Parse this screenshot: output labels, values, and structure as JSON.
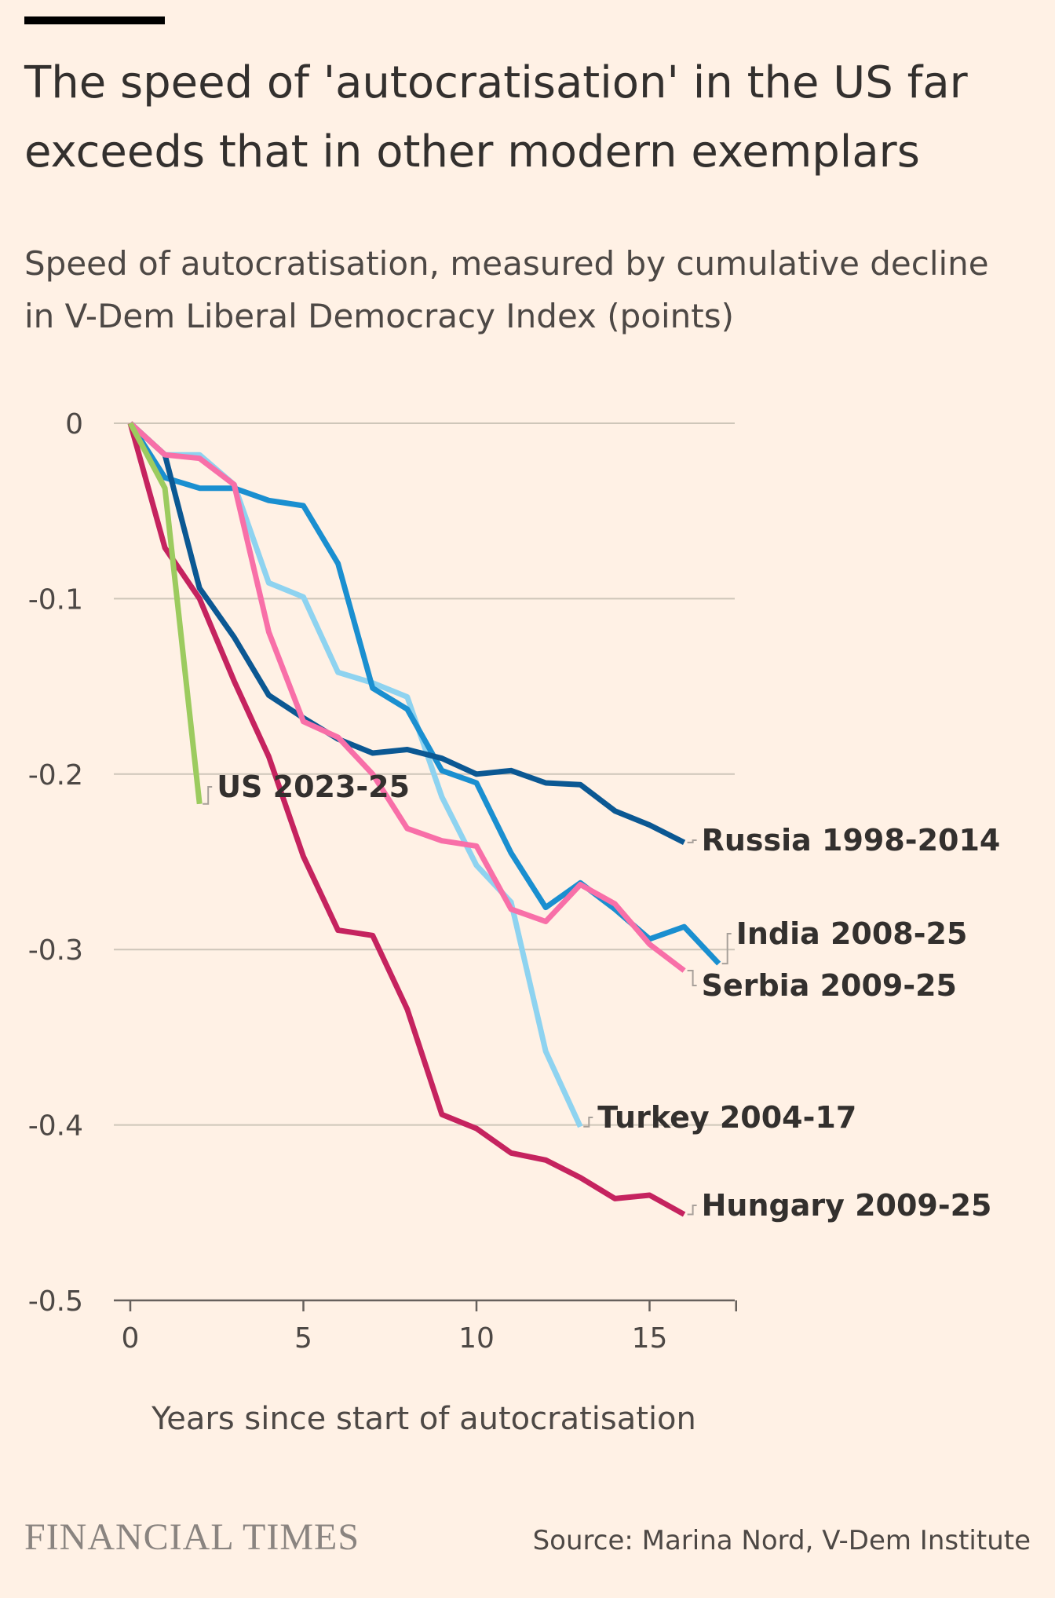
{
  "header": {
    "title": "The speed of 'autocratisation' in the US far exceeds that in other modern exemplars",
    "subtitle": "Speed of autocratisation, measured by cumulative decline in V-Dem Liberal Democracy Index (points)"
  },
  "footer": {
    "brand": "FINANCIAL TIMES",
    "source": "Source: Marina Nord, V-Dem Institute"
  },
  "chart_data": {
    "type": "line",
    "title": "The speed of 'autocratisation' in the US far exceeds that in other modern exemplars",
    "subtitle": "Speed of autocratisation, measured by cumulative decline in V-Dem Liberal Democracy Index (points)",
    "xlabel": "Years since start of autocratisation",
    "ylabel": "",
    "xlim": [
      0,
      17.5
    ],
    "ylim": [
      -0.5,
      0
    ],
    "xticks": [
      0,
      5,
      10,
      15
    ],
    "yticks": [
      0,
      -0.1,
      -0.2,
      -0.3,
      -0.4,
      -0.5
    ],
    "ytick_labels": [
      "0",
      "-0.1",
      "-0.2",
      "-0.3",
      "-0.4",
      "-0.5"
    ],
    "grid": "horizontal",
    "series": [
      {
        "name": "Turkey 2004-17",
        "color": "#8ED3F0",
        "values": [
          0,
          -0.018,
          -0.018,
          -0.035,
          -0.091,
          -0.099,
          -0.142,
          -0.148,
          -0.156,
          -0.213,
          -0.252,
          -0.273,
          -0.358,
          -0.401
        ]
      },
      {
        "name": "India 2008-25",
        "color": "#1A8FD0",
        "values": [
          0,
          -0.031,
          -0.037,
          -0.037,
          -0.044,
          -0.047,
          -0.08,
          -0.151,
          -0.163,
          -0.198,
          -0.205,
          -0.245,
          -0.276,
          -0.262,
          -0.277,
          -0.294,
          -0.287,
          -0.308
        ]
      },
      {
        "name": "Russia 1998-2014",
        "color": "#0B5893",
        "values": [
          0,
          -0.018,
          -0.094,
          -0.122,
          -0.155,
          -0.168,
          -0.18,
          -0.188,
          -0.186,
          -0.191,
          -0.2,
          -0.198,
          -0.205,
          -0.206,
          -0.221,
          -0.229,
          -0.239
        ]
      },
      {
        "name": "Serbia 2009-25",
        "color": "#F86FA8",
        "values": [
          0,
          -0.018,
          -0.02,
          -0.035,
          -0.119,
          -0.17,
          -0.179,
          -0.2,
          -0.231,
          -0.238,
          -0.241,
          -0.277,
          -0.284,
          -0.263,
          -0.274,
          -0.297,
          -0.312
        ]
      },
      {
        "name": "Hungary 2009-25",
        "color": "#C5235F",
        "values": [
          0,
          -0.071,
          -0.1,
          -0.147,
          -0.19,
          -0.247,
          -0.289,
          -0.292,
          -0.334,
          -0.394,
          -0.402,
          -0.416,
          -0.42,
          -0.43,
          -0.442,
          -0.44,
          -0.451
        ]
      },
      {
        "name": "US 2023-25",
        "color": "#9CCB5F",
        "values": [
          0,
          -0.037,
          -0.217
        ]
      }
    ]
  }
}
